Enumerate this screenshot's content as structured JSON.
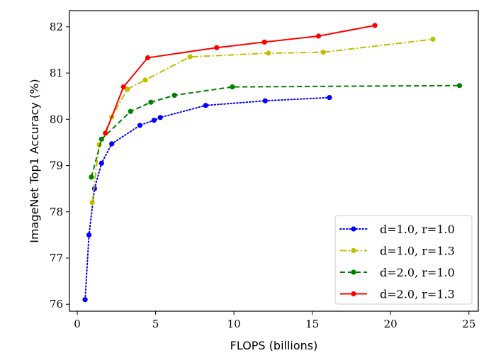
{
  "chart_data": {
    "type": "line",
    "xlabel": "FLOPS (billions)",
    "ylabel": "ImageNet Top1 Accuracy (%)",
    "xlim": [
      -0.5,
      25.6
    ],
    "ylim": [
      75.85,
      82.35
    ],
    "xticks": [
      0,
      5,
      10,
      15,
      20,
      25
    ],
    "yticks": [
      76,
      77,
      78,
      79,
      80,
      81,
      82
    ],
    "grid": false,
    "legend_position": "lower-right",
    "series": [
      {
        "name": "d=1.0, r=1.0",
        "color": "#0000ff",
        "linestyle": "dotted",
        "x": [
          0.5,
          0.75,
          1.1,
          1.55,
          2.2,
          4.0,
          4.9,
          5.3,
          8.2,
          12.0,
          16.1
        ],
        "y": [
          76.1,
          77.5,
          78.5,
          79.05,
          79.47,
          79.87,
          79.98,
          80.04,
          80.3,
          80.4,
          80.47
        ]
      },
      {
        "name": "d=1.0, r=1.3",
        "color": "#bfbf00",
        "linestyle": "dashdot",
        "x": [
          0.95,
          1.4,
          2.2,
          3.2,
          4.35,
          7.2,
          12.2,
          15.7,
          22.7
        ],
        "y": [
          78.2,
          79.45,
          80.05,
          80.65,
          80.85,
          81.35,
          81.43,
          81.45,
          81.73
        ]
      },
      {
        "name": "d=2.0, r=1.0",
        "color": "#008000",
        "linestyle": "dashed",
        "x": [
          0.9,
          1.55,
          3.4,
          4.7,
          6.2,
          9.9,
          24.4
        ],
        "y": [
          78.75,
          79.57,
          80.17,
          80.37,
          80.52,
          80.7,
          80.73
        ]
      },
      {
        "name": "d=2.0, r=1.3",
        "color": "#ff0000",
        "linestyle": "solid",
        "x": [
          1.8,
          2.95,
          4.5,
          8.9,
          11.95,
          15.4,
          19.0
        ],
        "y": [
          79.7,
          80.7,
          81.33,
          81.55,
          81.67,
          81.8,
          82.03
        ]
      }
    ]
  }
}
